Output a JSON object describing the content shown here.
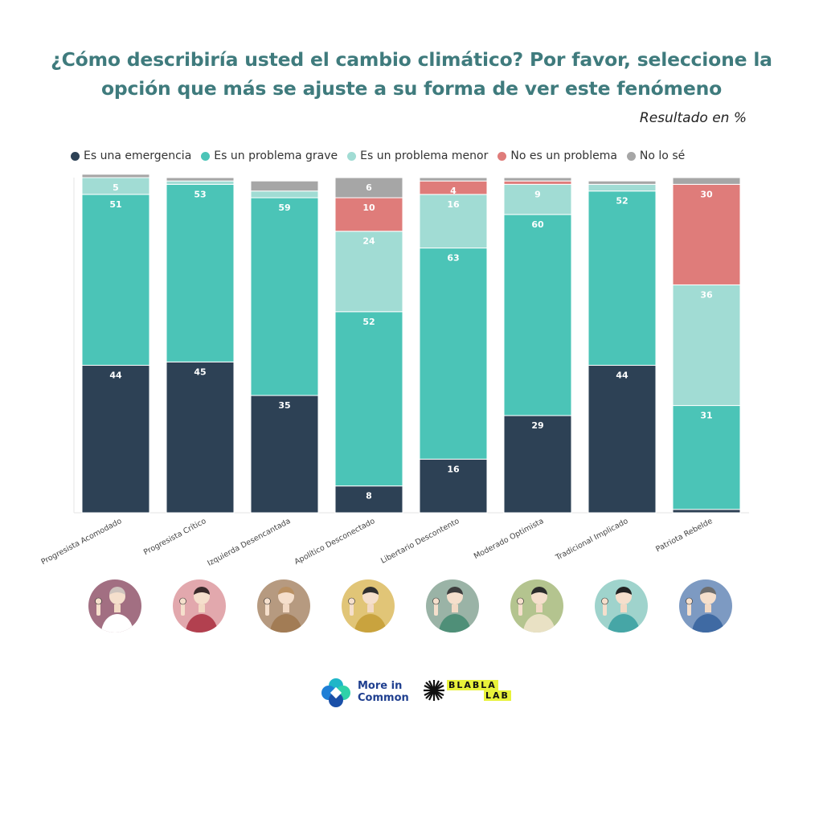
{
  "title": "¿Cómo describiría usted el cambio climático? Por favor, seleccione la opción que más se ajuste a su forma de ver este fenómeno",
  "subtitle": "Resultado en %",
  "colors": {
    "emergency": "#2d4155",
    "serious": "#4bc4b7",
    "minor": "#a1dcd4",
    "not_problem": "#df7c7a",
    "dont_know": "#a6a6a6"
  },
  "chart_data": {
    "type": "bar",
    "stacked": true,
    "ylim": [
      0,
      100
    ],
    "legend_position": "top-left",
    "categories": [
      "Progresista Acomodado",
      "Progresista Crítico",
      "Izquierda Desencantada",
      "Apolítico Desconectado",
      "Libertario Descontento",
      "Moderado Optimista",
      "Tradicional Implicado",
      "Patriota Rebelde"
    ],
    "series": [
      {
        "name": "Es una emergencia",
        "color_key": "emergency",
        "values": [
          44,
          45,
          35,
          8,
          16,
          29,
          44,
          1
        ],
        "labels": [
          "44",
          "45",
          "35",
          "8",
          "16",
          "29",
          "44",
          ""
        ]
      },
      {
        "name": "Es un problema grave",
        "color_key": "serious",
        "values": [
          51,
          53,
          59,
          52,
          63,
          60,
          52,
          31
        ],
        "labels": [
          "51",
          "53",
          "59",
          "52",
          "63",
          "60",
          "52",
          "31"
        ]
      },
      {
        "name": "Es un problema menor",
        "color_key": "minor",
        "values": [
          5,
          1,
          2,
          24,
          16,
          9,
          2,
          36
        ],
        "labels": [
          "5",
          "",
          "",
          "24",
          "16",
          "9",
          "",
          "36"
        ]
      },
      {
        "name": "No es un problema",
        "color_key": "not_problem",
        "values": [
          0,
          0,
          0,
          10,
          4,
          1,
          0,
          30
        ],
        "labels": [
          "",
          "",
          "",
          "10",
          "4",
          "",
          "",
          "30"
        ]
      },
      {
        "name": "No lo sé",
        "color_key": "dont_know",
        "values": [
          1,
          1,
          3,
          6,
          1,
          1,
          1,
          2
        ],
        "labels": [
          "",
          "",
          "",
          "6",
          "",
          "",
          "",
          ""
        ]
      }
    ]
  },
  "avatars": [
    {
      "bg": "#a26f82",
      "shirt": "#ffffff",
      "hair": "#cfc4be"
    },
    {
      "bg": "#e2a8ad",
      "shirt": "#b2404f",
      "hair": "#3a2a2a"
    },
    {
      "bg": "#b69a80",
      "shirt": "#a27c55",
      "hair": "#b99062"
    },
    {
      "bg": "#e1c577",
      "shirt": "#c9a33e",
      "hair": "#2f2f2f"
    },
    {
      "bg": "#9ab3a6",
      "shirt": "#4f8f78",
      "hair": "#3d3d3d"
    },
    {
      "bg": "#b4c48f",
      "shirt": "#e9e1c4",
      "hair": "#2c2c2c"
    },
    {
      "bg": "#9fd3cc",
      "shirt": "#46a6a6",
      "hair": "#222222"
    },
    {
      "bg": "#7d9ac2",
      "shirt": "#3f6aa3",
      "hair": "#6d6d6d"
    }
  ],
  "logos": {
    "more_in_common_line1": "More in",
    "more_in_common_line2": "Common",
    "blabla_line1": "BLABLA",
    "blabla_line2": "LAB"
  }
}
